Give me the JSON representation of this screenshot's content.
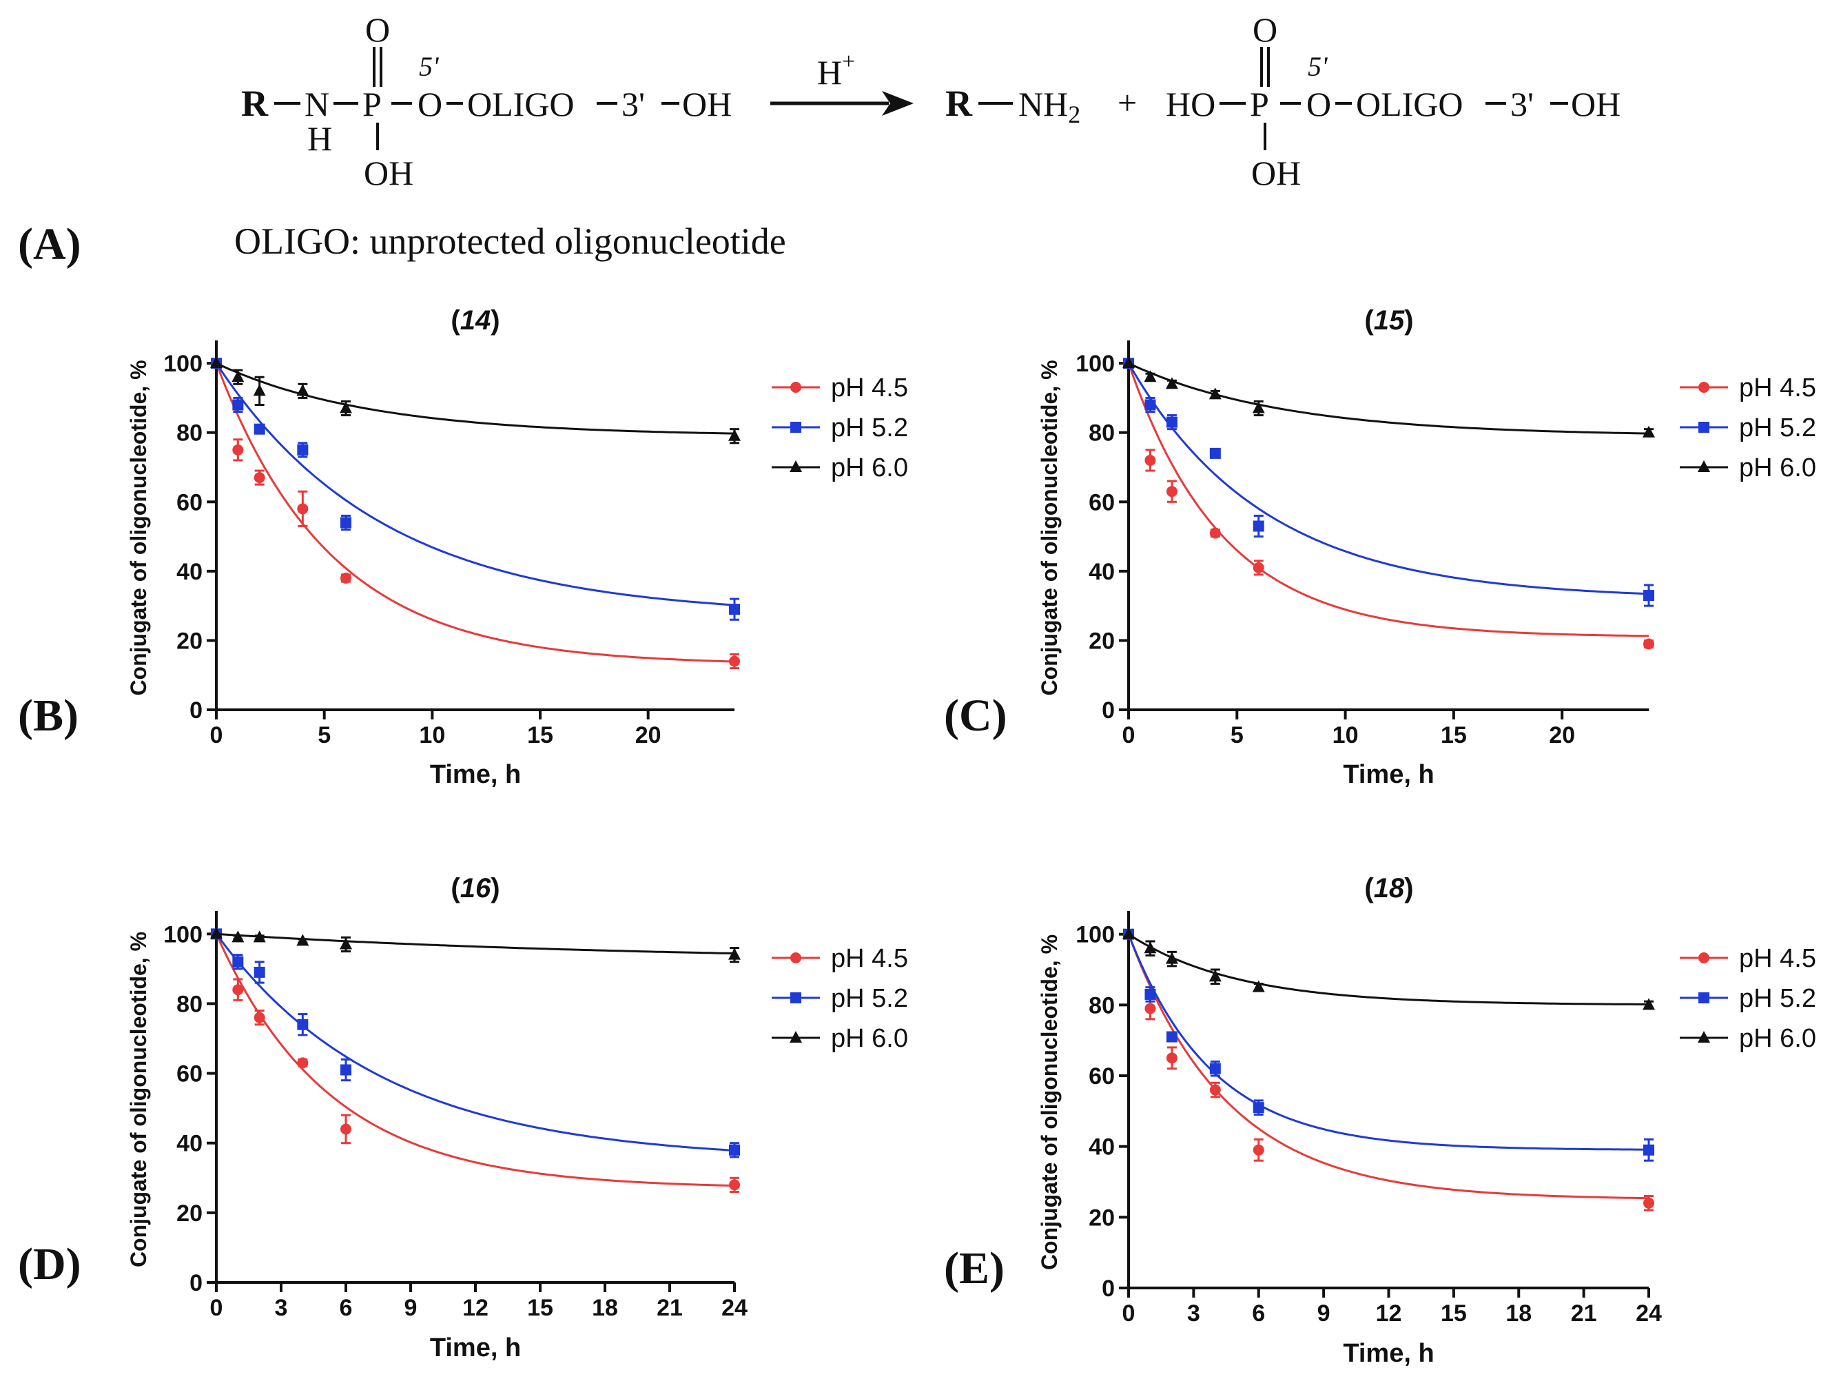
{
  "scheme": {
    "reactant": {
      "R": "R",
      "N": "N",
      "H": "H",
      "P": "P",
      "O_top": "O",
      "prime5": "5'",
      "O_link": "O",
      "oligo": "OLIGO",
      "prime3": "3'",
      "OH_end": "OH",
      "OH_bottom": "OH"
    },
    "catalyst": "H",
    "catalyst_sup": "+",
    "product1": {
      "R": "R",
      "NH": "NH",
      "sub2": "2"
    },
    "plus": "+",
    "product2": {
      "HO": "HO",
      "P": "P",
      "O_top": "O",
      "prime5": "5'",
      "O_link": "O",
      "oligo": "OLIGO",
      "prime3": "3'",
      "OH_end": "OH",
      "OH_bottom": "OH"
    },
    "panel_label": "(A)",
    "legend_note": "OLIGO: unprotected oligonucleotide"
  },
  "colors": {
    "ph45": "#e83a3a",
    "ph52": "#1f3bd6",
    "ph60": "#111111"
  },
  "chart_data": [
    {
      "panel": "(B)",
      "title_open": "(",
      "title_num": "14",
      "title_close": ")",
      "type": "scatter",
      "xlabel": "Time, h",
      "ylabel": "Conjugate of oligonucleotide, %",
      "xlim": [
        0,
        24
      ],
      "ylim": [
        0,
        105
      ],
      "xticks": [
        0,
        5,
        10,
        15,
        20
      ],
      "yticks": [
        0,
        20,
        40,
        60,
        80,
        100
      ],
      "x": [
        0,
        1,
        2,
        4,
        6,
        24
      ],
      "series": [
        {
          "name": "pH 4.5",
          "marker": "circle",
          "values": [
            100,
            75,
            67,
            58,
            38,
            14
          ],
          "errors": [
            0,
            3,
            2,
            5,
            1,
            2
          ],
          "fit": {
            "plateau": 13,
            "k": 0.19
          }
        },
        {
          "name": "pH 5.2",
          "marker": "square",
          "values": [
            100,
            88,
            81,
            75,
            54,
            29
          ],
          "errors": [
            0,
            2,
            1,
            2,
            2,
            3
          ],
          "fit": {
            "plateau": 27,
            "k": 0.13
          }
        },
        {
          "name": "pH 6.0",
          "marker": "triangle",
          "values": [
            100,
            96,
            92,
            92,
            87,
            79
          ],
          "errors": [
            0,
            2,
            4,
            2,
            2,
            2
          ],
          "fit": {
            "plateau": 79,
            "k": 0.14
          }
        }
      ]
    },
    {
      "panel": "(C)",
      "title_open": "(",
      "title_num": "15",
      "title_close": ")",
      "type": "scatter",
      "xlabel": "Time, h",
      "ylabel": "Conjugate of oligonucleotide, %",
      "xlim": [
        0,
        24
      ],
      "ylim": [
        0,
        105
      ],
      "xticks": [
        0,
        5,
        10,
        15,
        20
      ],
      "yticks": [
        0,
        20,
        40,
        60,
        80,
        100
      ],
      "x": [
        0,
        1,
        2,
        4,
        6,
        24
      ],
      "series": [
        {
          "name": "pH 4.5",
          "marker": "circle",
          "values": [
            100,
            72,
            63,
            51,
            41,
            19
          ],
          "errors": [
            0,
            3,
            3,
            1,
            2,
            1
          ],
          "fit": {
            "plateau": 21,
            "k": 0.23
          }
        },
        {
          "name": "pH 5.2",
          "marker": "square",
          "values": [
            100,
            88,
            83,
            74,
            53,
            33
          ],
          "errors": [
            0,
            2,
            2,
            1,
            3,
            3
          ],
          "fit": {
            "plateau": 32,
            "k": 0.16
          }
        },
        {
          "name": "pH 6.0",
          "marker": "triangle",
          "values": [
            100,
            96,
            94,
            91,
            87,
            80
          ],
          "errors": [
            0,
            1,
            1,
            1,
            2,
            1
          ],
          "fit": {
            "plateau": 79,
            "k": 0.14
          }
        }
      ]
    },
    {
      "panel": "(D)",
      "title_open": "(",
      "title_num": "16",
      "title_close": ")",
      "type": "scatter",
      "xlabel": "Time, h",
      "ylabel": "Conjugate of oligonucleotide, %",
      "xlim": [
        0,
        24
      ],
      "ylim": [
        0,
        105
      ],
      "xticks": [
        0,
        3,
        6,
        9,
        12,
        15,
        18,
        21,
        24
      ],
      "yticks": [
        0,
        20,
        40,
        60,
        80,
        100
      ],
      "x": [
        0,
        1,
        2,
        4,
        6,
        24
      ],
      "series": [
        {
          "name": "pH 4.5",
          "marker": "circle",
          "values": [
            100,
            84,
            76,
            63,
            44,
            28
          ],
          "errors": [
            0,
            3,
            2,
            1,
            4,
            2
          ],
          "fit": {
            "plateau": 27,
            "k": 0.19
          }
        },
        {
          "name": "pH 5.2",
          "marker": "square",
          "values": [
            100,
            92,
            89,
            74,
            61,
            38
          ],
          "errors": [
            0,
            2,
            3,
            3,
            3,
            2
          ],
          "fit": {
            "plateau": 35,
            "k": 0.13
          }
        },
        {
          "name": "pH 6.0",
          "marker": "triangle",
          "values": [
            100,
            99,
            99,
            98,
            97,
            94
          ],
          "errors": [
            0,
            0.5,
            0.5,
            0.5,
            2,
            2
          ],
          "fit": {
            "plateau": 92,
            "k": 0.05
          }
        }
      ]
    },
    {
      "panel": "(E)",
      "title_open": "(",
      "title_num": "18",
      "title_close": ")",
      "type": "scatter",
      "xlabel": "Time, h",
      "ylabel": "Conjugate of oligonucleotide, %",
      "xlim": [
        0,
        24
      ],
      "ylim": [
        0,
        105
      ],
      "xticks": [
        0,
        3,
        6,
        9,
        12,
        15,
        18,
        21,
        24
      ],
      "yticks": [
        0,
        20,
        40,
        60,
        80,
        100
      ],
      "x": [
        0,
        1,
        2,
        4,
        6,
        24
      ],
      "series": [
        {
          "name": "pH 4.5",
          "marker": "circle",
          "values": [
            100,
            79,
            65,
            56,
            39,
            24
          ],
          "errors": [
            0,
            3,
            3,
            2,
            3,
            2
          ],
          "fit": {
            "plateau": 25,
            "k": 0.22
          }
        },
        {
          "name": "pH 5.2",
          "marker": "square",
          "values": [
            100,
            83,
            71,
            62,
            51,
            39
          ],
          "errors": [
            0,
            2,
            1,
            2,
            2,
            3
          ],
          "fit": {
            "plateau": 39,
            "k": 0.26
          }
        },
        {
          "name": "pH 6.0",
          "marker": "triangle",
          "values": [
            100,
            96,
            93,
            88,
            85,
            80
          ],
          "errors": [
            0,
            2,
            2,
            2,
            1,
            1
          ],
          "fit": {
            "plateau": 80,
            "k": 0.2
          }
        }
      ]
    }
  ]
}
